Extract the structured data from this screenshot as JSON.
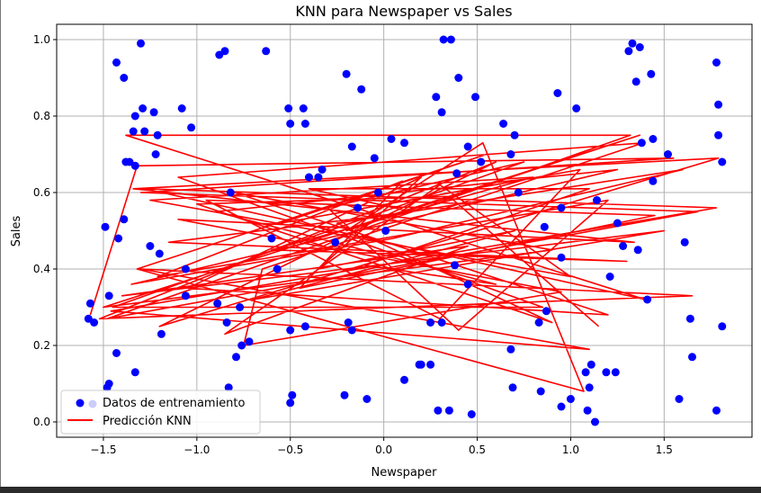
{
  "chart_data": {
    "type": "scatter",
    "title": "KNN para Newspaper vs Sales",
    "xlabel": "Newspaper",
    "ylabel": "Sales",
    "xlim": [
      -1.75,
      1.97
    ],
    "ylim": [
      -0.04,
      1.04
    ],
    "xticks": [
      -1.5,
      -1.0,
      -0.5,
      0.0,
      0.5,
      1.0,
      1.5
    ],
    "xtick_labels": [
      "−1.5",
      "−1.0",
      "−0.5",
      "0.0",
      "0.5",
      "1.0",
      "1.5"
    ],
    "yticks": [
      0.0,
      0.2,
      0.4,
      0.6,
      0.8,
      1.0
    ],
    "ytick_labels": [
      "0.0",
      "0.2",
      "0.4",
      "0.6",
      "0.8",
      "1.0"
    ],
    "grid": true,
    "legend_position": "lower-left",
    "series": [
      {
        "name": "Datos de entrenamiento",
        "kind": "scatter",
        "color": "#0000ff",
        "points": [
          [
            -1.3,
            0.99
          ],
          [
            -1.43,
            0.94
          ],
          [
            -1.39,
            0.9
          ],
          [
            -1.33,
            0.8
          ],
          [
            -1.29,
            0.82
          ],
          [
            -1.23,
            0.81
          ],
          [
            -1.21,
            0.75
          ],
          [
            -1.34,
            0.76
          ],
          [
            -1.28,
            0.76
          ],
          [
            -1.36,
            0.68
          ],
          [
            -1.38,
            0.68
          ],
          [
            -1.33,
            0.67
          ],
          [
            -1.22,
            0.7
          ],
          [
            -1.39,
            0.53
          ],
          [
            -1.42,
            0.48
          ],
          [
            -1.49,
            0.51
          ],
          [
            -1.55,
            0.26
          ],
          [
            -1.57,
            0.31
          ],
          [
            -1.58,
            0.27
          ],
          [
            -1.47,
            0.33
          ],
          [
            -1.43,
            0.18
          ],
          [
            -1.47,
            0.1
          ],
          [
            -1.48,
            0.09
          ],
          [
            -1.33,
            0.13
          ],
          [
            -1.25,
            0.46
          ],
          [
            -1.2,
            0.44
          ],
          [
            -1.19,
            0.23
          ],
          [
            -1.06,
            0.4
          ],
          [
            -1.06,
            0.33
          ],
          [
            -1.03,
            0.77
          ],
          [
            -1.08,
            0.82
          ],
          [
            -0.88,
            0.96
          ],
          [
            -0.85,
            0.97
          ],
          [
            -0.63,
            0.97
          ],
          [
            -0.51,
            0.82
          ],
          [
            -0.43,
            0.82
          ],
          [
            -0.5,
            0.78
          ],
          [
            -0.42,
            0.78
          ],
          [
            -0.4,
            0.64
          ],
          [
            -0.35,
            0.64
          ],
          [
            -0.33,
            0.66
          ],
          [
            -0.82,
            0.6
          ],
          [
            -0.89,
            0.31
          ],
          [
            -0.84,
            0.26
          ],
          [
            -0.79,
            0.17
          ],
          [
            -0.76,
            0.2
          ],
          [
            -0.72,
            0.21
          ],
          [
            -0.77,
            0.3
          ],
          [
            -0.83,
            0.09
          ],
          [
            -0.6,
            0.48
          ],
          [
            -0.57,
            0.4
          ],
          [
            -0.5,
            0.24
          ],
          [
            -0.42,
            0.25
          ],
          [
            -0.5,
            0.05
          ],
          [
            -0.49,
            0.07
          ],
          [
            -0.2,
            0.91
          ],
          [
            -0.12,
            0.87
          ],
          [
            -0.17,
            0.72
          ],
          [
            -0.05,
            0.69
          ],
          [
            0.04,
            0.74
          ],
          [
            0.11,
            0.73
          ],
          [
            -0.19,
            0.26
          ],
          [
            -0.17,
            0.24
          ],
          [
            -0.21,
            0.07
          ],
          [
            -0.09,
            0.06
          ],
          [
            -0.14,
            0.56
          ],
          [
            -0.03,
            0.6
          ],
          [
            0.01,
            0.5
          ],
          [
            -0.26,
            0.47
          ],
          [
            0.11,
            0.11
          ],
          [
            0.19,
            0.15
          ],
          [
            0.2,
            0.15
          ],
          [
            0.25,
            0.15
          ],
          [
            0.25,
            0.26
          ],
          [
            0.31,
            0.26
          ],
          [
            0.29,
            0.03
          ],
          [
            0.35,
            0.03
          ],
          [
            0.32,
            1.0
          ],
          [
            0.36,
            1.0
          ],
          [
            0.4,
            0.9
          ],
          [
            0.28,
            0.85
          ],
          [
            0.31,
            0.81
          ],
          [
            0.49,
            0.85
          ],
          [
            0.45,
            0.72
          ],
          [
            0.39,
            0.65
          ],
          [
            0.38,
            0.41
          ],
          [
            0.45,
            0.36
          ],
          [
            0.47,
            0.02
          ],
          [
            0.52,
            0.68
          ],
          [
            0.64,
            0.78
          ],
          [
            0.68,
            0.7
          ],
          [
            0.7,
            0.75
          ],
          [
            0.72,
            0.6
          ],
          [
            0.68,
            0.19
          ],
          [
            0.69,
            0.09
          ],
          [
            0.83,
            0.26
          ],
          [
            0.86,
            0.51
          ],
          [
            0.87,
            0.29
          ],
          [
            0.84,
            0.08
          ],
          [
            0.93,
            0.86
          ],
          [
            1.03,
            0.82
          ],
          [
            0.95,
            0.56
          ],
          [
            0.95,
            0.43
          ],
          [
            0.95,
            0.04
          ],
          [
            1.0,
            0.06
          ],
          [
            1.08,
            0.13
          ],
          [
            1.1,
            0.09
          ],
          [
            1.11,
            0.15
          ],
          [
            1.09,
            0.03
          ],
          [
            1.13,
            0.0
          ],
          [
            1.14,
            0.58
          ],
          [
            1.19,
            0.13
          ],
          [
            1.21,
            0.38
          ],
          [
            1.24,
            0.13
          ],
          [
            1.25,
            0.52
          ],
          [
            1.28,
            0.46
          ],
          [
            1.31,
            0.97
          ],
          [
            1.33,
            0.99
          ],
          [
            1.37,
            0.98
          ],
          [
            1.35,
            0.89
          ],
          [
            1.43,
            0.91
          ],
          [
            1.38,
            0.73
          ],
          [
            1.44,
            0.74
          ],
          [
            1.44,
            0.63
          ],
          [
            1.36,
            0.45
          ],
          [
            1.41,
            0.32
          ],
          [
            1.52,
            0.7
          ],
          [
            1.58,
            0.06
          ],
          [
            1.61,
            0.47
          ],
          [
            1.64,
            0.27
          ],
          [
            1.65,
            0.17
          ],
          [
            1.78,
            0.94
          ],
          [
            1.79,
            0.83
          ],
          [
            1.79,
            0.75
          ],
          [
            1.78,
            0.03
          ],
          [
            1.81,
            0.68
          ],
          [
            1.81,
            0.25
          ]
        ]
      },
      {
        "name": "Predicción KNN",
        "kind": "line",
        "color": "#ff0000",
        "points": [
          [
            -1.57,
            0.28
          ],
          [
            -1.32,
            0.67
          ],
          [
            1.55,
            0.69
          ],
          [
            -1.3,
            0.6
          ],
          [
            1.68,
            0.55
          ],
          [
            -1.48,
            0.27
          ],
          [
            1.32,
            0.75
          ],
          [
            -1.38,
            0.75
          ],
          [
            1.4,
            0.32
          ],
          [
            -1.28,
            0.61
          ],
          [
            1.78,
            0.56
          ],
          [
            -1.46,
            0.29
          ],
          [
            1.1,
            0.19
          ],
          [
            -1.3,
            0.4
          ],
          [
            1.65,
            0.33
          ],
          [
            -1.52,
            0.27
          ],
          [
            0.6,
            0.68
          ],
          [
            -1.2,
            0.25
          ],
          [
            1.79,
            0.69
          ],
          [
            -1.34,
            0.61
          ],
          [
            1.34,
            0.47
          ],
          [
            -1.1,
            0.53
          ],
          [
            0.95,
            0.34
          ],
          [
            -0.75,
            0.2
          ],
          [
            -0.65,
            0.4
          ],
          [
            1.39,
            0.73
          ],
          [
            -1.1,
            0.64
          ],
          [
            0.85,
            0.3
          ],
          [
            -1.45,
            0.3
          ],
          [
            0.75,
            0.68
          ],
          [
            -0.3,
            0.56
          ],
          [
            0.4,
            0.24
          ],
          [
            1.2,
            0.58
          ],
          [
            -1.21,
            0.38
          ],
          [
            0.1,
            0.63
          ],
          [
            -0.45,
            0.35
          ],
          [
            1.45,
            0.54
          ],
          [
            -0.95,
            0.58
          ],
          [
            0.3,
            0.27
          ],
          [
            1.05,
            0.66
          ],
          [
            -0.55,
            0.52
          ],
          [
            0.55,
            0.7
          ],
          [
            -1.32,
            0.4
          ],
          [
            1.07,
            0.08
          ],
          [
            0.53,
            0.73
          ],
          [
            -0.2,
            0.5
          ],
          [
            1.37,
            0.75
          ],
          [
            -1.5,
            0.3
          ],
          [
            0.9,
            0.45
          ],
          [
            -0.8,
            0.6
          ],
          [
            1.2,
            0.28
          ],
          [
            -1.05,
            0.35
          ],
          [
            0.2,
            0.64
          ],
          [
            -0.35,
            0.4
          ],
          [
            0.7,
            0.5
          ],
          [
            -0.7,
            0.32
          ],
          [
            1.5,
            0.5
          ],
          [
            -1.4,
            0.33
          ],
          [
            0.45,
            0.46
          ],
          [
            -0.85,
            0.23
          ],
          [
            0.3,
            0.62
          ],
          [
            1.0,
            0.38
          ],
          [
            -1.25,
            0.58
          ],
          [
            0.8,
            0.64
          ],
          [
            -0.6,
            0.45
          ],
          [
            1.3,
            0.42
          ],
          [
            -1.15,
            0.47
          ],
          [
            0.15,
            0.55
          ],
          [
            -0.4,
            0.61
          ],
          [
            1.1,
            0.61
          ],
          [
            -0.1,
            0.41
          ],
          [
            0.6,
            0.36
          ],
          [
            -0.9,
            0.55
          ],
          [
            1.25,
            0.66
          ],
          [
            -1.35,
            0.36
          ],
          [
            0.05,
            0.48
          ],
          [
            1.6,
            0.66
          ],
          [
            -0.25,
            0.52
          ],
          [
            0.9,
            0.26
          ],
          [
            -1.0,
            0.57
          ],
          [
            0.35,
            0.59
          ],
          [
            1.15,
            0.25
          ]
        ]
      }
    ]
  }
}
